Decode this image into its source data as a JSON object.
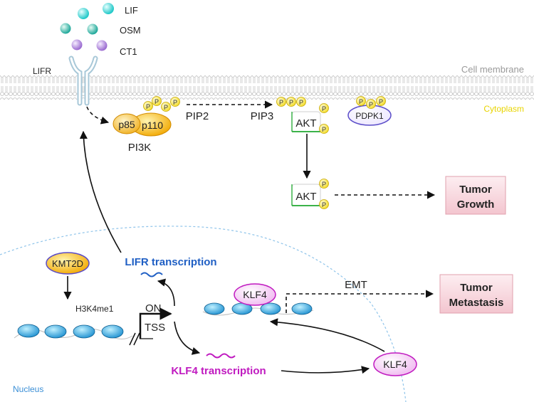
{
  "ligands": {
    "lif": "LIF",
    "osm": "OSM",
    "ct1": "CT1"
  },
  "receptor": {
    "label": "LIFR"
  },
  "membrane": {
    "label": "Cell membrane",
    "cytoplasm": "Cytoplasm"
  },
  "pi3k": {
    "p85": "p85",
    "p110": "p110",
    "label": "PI3K"
  },
  "pathway": {
    "pip2": "PIP2",
    "pip3": "PIP3",
    "akt": "AKT",
    "pdpk1": "PDPK1",
    "phospho": "P"
  },
  "outcomes": {
    "growth_line1": "Tumor",
    "growth_line2": "Growth",
    "metastasis_line1": "Tumor",
    "metastasis_line2": "Metastasis",
    "emt": "EMT"
  },
  "nucleus": {
    "label": "Nucleus",
    "kmt2d": "KMT2D",
    "h3k4me1": "H3K4me1",
    "on": "ON",
    "tss": "TSS",
    "lifr_transcription": "LIFR transcription",
    "klf4_transcription": "KLF4 transcription",
    "klf4": "KLF4"
  },
  "colors": {
    "lif": "#20c8c8",
    "osm": "#1fa89a",
    "ct1": "#9a6ad0",
    "lifr_text": "#1f5fc4",
    "klf4_text": "#c01ac0",
    "phospho": "#f2dc2a",
    "akt_border": "#3cb34a",
    "pdpk1_border": "#5a4cc8",
    "outcome_fill": "#f7d4dc",
    "cytoplasm": "#e8d400",
    "nucleus": "#3b8fd6"
  }
}
